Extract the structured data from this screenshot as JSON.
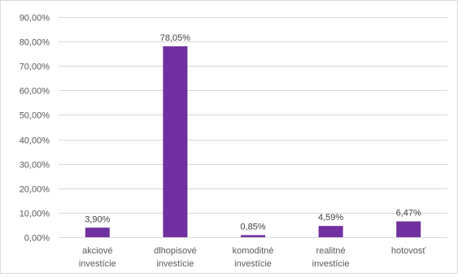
{
  "chart_data": {
    "type": "bar",
    "title": "",
    "xlabel": "",
    "ylabel": "",
    "categories": [
      [
        "akciové",
        "investície"
      ],
      [
        "dlhopisové",
        "investície"
      ],
      [
        "komoditné",
        "investície"
      ],
      [
        "realitné",
        "investície"
      ],
      [
        "hotovosť"
      ]
    ],
    "values": [
      3.9,
      78.05,
      0.85,
      4.59,
      6.47
    ],
    "value_labels": [
      "3,90%",
      "78,05%",
      "0,85%",
      "4,59%",
      "6,47%"
    ],
    "ylim": [
      0,
      90
    ],
    "yticks": [
      0,
      10,
      20,
      30,
      40,
      50,
      60,
      70,
      80,
      90
    ],
    "ytick_labels": [
      "0,00%",
      "10,00%",
      "20,00%",
      "30,00%",
      "40,00%",
      "50,00%",
      "60,00%",
      "70,00%",
      "80,00%",
      "90,00%"
    ],
    "grid": true,
    "legend": false,
    "bar_color": "#7030A0",
    "grid_color": "#d9d9d9",
    "text_color": "#595959"
  }
}
